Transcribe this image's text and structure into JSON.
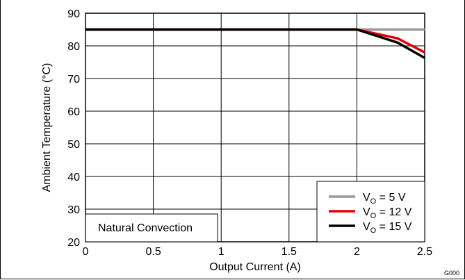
{
  "chart_data": {
    "type": "line",
    "xlabel": "Output Current (A)",
    "ylabel": "Ambient Temperature (°C)",
    "xlim": [
      0,
      2.5
    ],
    "ylim": [
      20,
      90
    ],
    "x_ticks": [
      "0",
      "0.5",
      "1",
      "1.5",
      "2",
      "2.5"
    ],
    "y_ticks": [
      "20",
      "30",
      "40",
      "50",
      "60",
      "70",
      "80",
      "90"
    ],
    "grid": true,
    "legend_position": "bottom-right",
    "annotation": "Natural Convection",
    "figure_code": "G000",
    "series": [
      {
        "name_prefix": "V",
        "name_sub": "O",
        "name_suffix": " = 5 V",
        "color": "#999999",
        "x": [
          0,
          2.0,
          2.5
        ],
        "y": [
          85,
          85,
          85
        ]
      },
      {
        "name_prefix": "V",
        "name_sub": "O",
        "name_suffix": " = 12 V",
        "color": "#e00000",
        "x": [
          0,
          2.0,
          2.3,
          2.5
        ],
        "y": [
          85,
          85,
          82.3,
          78
        ]
      },
      {
        "name_prefix": "V",
        "name_sub": "O",
        "name_suffix": " = 15 V",
        "color": "#000000",
        "x": [
          0,
          2.0,
          2.3,
          2.5
        ],
        "y": [
          85,
          85,
          81,
          76.3
        ]
      }
    ]
  }
}
